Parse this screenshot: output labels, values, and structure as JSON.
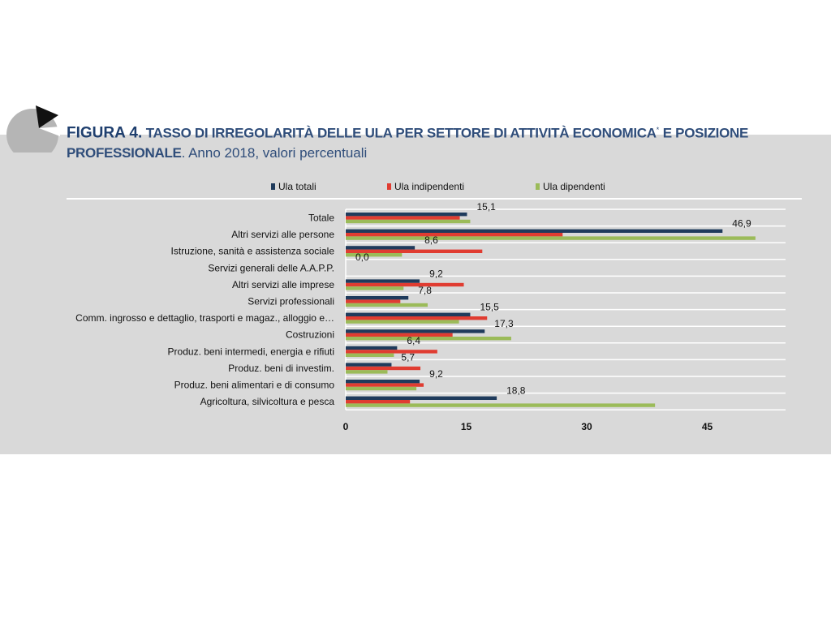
{
  "figure": {
    "label": "FIGURA 4.",
    "title_line1": "TASSO DI IRREGOLARITÀ DELLE ULA PER SETTORE DI ATTIVITÀ ECONOMICA",
    "title_star": "*",
    "title_line1_end": " E POSIZIONE",
    "title_line2": "PROFESSIONALE",
    "subtitle": ". Anno 2018, valori percentuali"
  },
  "colors": {
    "panel": "#d9d9d9",
    "title": "#2f4d7a",
    "ula_totali": "#1f3b5c",
    "ula_indipendenti": "#e03c31",
    "ula_dipendenti": "#9bbb59"
  },
  "chart_data": {
    "type": "bar",
    "orientation": "horizontal",
    "categories": [
      "Totale",
      "Altri servizi alle persone",
      "Istruzione, sanità e assistenza sociale",
      "Servizi generali delle A.A.P.P.",
      "Altri servizi alle imprese",
      "Servizi professionali",
      "Comm. ingrosso e dettaglio, trasporti e magaz., alloggio e…",
      "Costruzioni",
      "Produz. beni intermedi, energia e rifiuti",
      "Produz. beni di investim.",
      "Produz. beni alimentari e di consumo",
      "Agricoltura, silvicoltura e pesca"
    ],
    "series": [
      {
        "name": "Ula totali",
        "color": "#1f3b5c",
        "values": [
          15.1,
          46.9,
          8.6,
          0.0,
          9.2,
          7.8,
          15.5,
          17.3,
          6.4,
          5.7,
          9.2,
          18.8
        ]
      },
      {
        "name": "Ula indipendenti",
        "color": "#e03c31",
        "values": [
          14.2,
          27.0,
          17.0,
          0.0,
          14.7,
          6.8,
          17.6,
          13.3,
          11.4,
          9.3,
          9.7,
          8.0
        ]
      },
      {
        "name": "Ula dipendenti",
        "color": "#9bbb59",
        "values": [
          15.5,
          51.0,
          7.0,
          0.0,
          7.2,
          10.2,
          14.1,
          20.6,
          6.0,
          5.2,
          8.8,
          38.5
        ]
      }
    ],
    "data_labels": [
      "15,1",
      "46,9",
      "8,6",
      "0,0",
      "9,2",
      "7,8",
      "15,5",
      "17,3",
      "6,4",
      "5,7",
      "9,2",
      "18,8"
    ],
    "xlim": [
      0,
      55
    ],
    "xticks": [
      0,
      15,
      30,
      45
    ],
    "xtick_labels": [
      "0",
      "15",
      "30",
      "45"
    ],
    "legend_position": "top",
    "grid": "horizontal"
  }
}
